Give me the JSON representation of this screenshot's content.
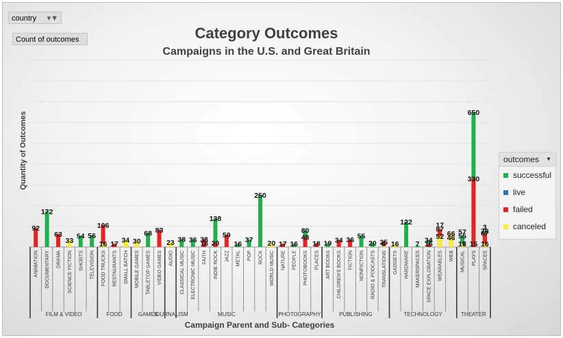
{
  "filters": {
    "country_label": "country",
    "values_label": "Count of outcomes"
  },
  "colors": {
    "successful": "#1fb24a",
    "live": "#2a74c0",
    "failed": "#e8231f",
    "canceled": "#f7ee2a"
  },
  "chart_data": {
    "type": "bar",
    "title": "Category Outcomes",
    "subtitle": "Campaigns in the U.S. and Great Britain",
    "xlabel": "Campaign Parent and Sub- Categories",
    "ylabel": "Quantity of Outcomes",
    "ylim": [
      0,
      900
    ],
    "grid": true,
    "legend_position": "right",
    "legend_title": "outcomes",
    "series_names": [
      "successful",
      "live",
      "failed",
      "canceled"
    ],
    "groups": [
      {
        "name": "FILM & VIDEO",
        "categories": [
          "ANIMATION",
          "DOCUMENTARY",
          "DRAMA",
          "SCIENCE FICTION",
          "SHORTS",
          "TELEVISION"
        ]
      },
      {
        "name": "FOOD",
        "categories": [
          "FOOD TRUCKS",
          "RESTAURANTS",
          "SMALL BATCH"
        ]
      },
      {
        "name": "GAMES",
        "categories": [
          "MOBILE GAMES",
          "TABLETOP GAMES",
          "VIDEO GAMES"
        ]
      },
      {
        "name": "JOURNALISM",
        "categories": [
          "AUDIO"
        ]
      },
      {
        "name": "MUSIC",
        "categories": [
          "CLASSICAL MUSIC",
          "ELECTRONIC MUSIC",
          "FAITH",
          "INDIE ROCK",
          "JAZZ",
          "METAL",
          "POP",
          "ROCK",
          "WORLD MUSIC"
        ]
      },
      {
        "name": "PHOTOGRAPHY",
        "categories": [
          "NATURE",
          "PEOPLE",
          "PHOTOBOOKS",
          "PLACES"
        ]
      },
      {
        "name": "PUBLISHING",
        "categories": [
          "ART BOOKS",
          "CHILDREN'S BOOKS",
          "FICTION",
          "NONFICTION",
          "RADIO & PODCASTS",
          "TRANSLATIONS"
        ]
      },
      {
        "name": "TECHNOLOGY",
        "categories": [
          "GADGETS",
          "HARDWARE",
          "MAKERSPACES",
          "SPACE EXPLORATION",
          "WEARABLES",
          "WEB"
        ]
      },
      {
        "name": "THEATER",
        "categories": [
          "MUSICAL",
          "PLAYS",
          "SPACES"
        ]
      }
    ],
    "points": [
      {
        "cat": "ANIMATION",
        "successful": 0,
        "live": 0,
        "failed": 92,
        "canceled": 0
      },
      {
        "cat": "DOCUMENTARY",
        "successful": 172,
        "live": 0,
        "failed": 0,
        "canceled": 0
      },
      {
        "cat": "DRAMA",
        "successful": 0,
        "live": 0,
        "failed": 63,
        "canceled": 0
      },
      {
        "cat": "SCIENCE FICTION",
        "successful": 0,
        "live": 0,
        "failed": 0,
        "canceled": 33
      },
      {
        "cat": "SHORTS",
        "successful": 54,
        "live": 0,
        "failed": 0,
        "canceled": 0
      },
      {
        "cat": "TELEVISION",
        "successful": 56,
        "live": 0,
        "failed": 0,
        "canceled": 0
      },
      {
        "cat": "FOOD TRUCKS",
        "successful": 0,
        "live": 0,
        "failed": 106,
        "canceled": 16
      },
      {
        "cat": "RESTAURANTS",
        "successful": 0,
        "live": 0,
        "failed": 17,
        "canceled": 0
      },
      {
        "cat": "SMALL BATCH",
        "successful": 0,
        "live": 0,
        "failed": 0,
        "canceled": 34
      },
      {
        "cat": "MOBILE GAMES",
        "successful": 0,
        "live": 0,
        "failed": 0,
        "canceled": 30
      },
      {
        "cat": "TABLETOP GAMES",
        "successful": 68,
        "live": 0,
        "failed": 0,
        "canceled": 0
      },
      {
        "cat": "VIDEO GAMES",
        "successful": 0,
        "live": 0,
        "failed": 83,
        "canceled": 0
      },
      {
        "cat": "AUDIO",
        "successful": 0,
        "live": 0,
        "failed": 0,
        "canceled": 23
      },
      {
        "cat": "CLASSICAL MUSIC",
        "successful": 38,
        "live": 0,
        "failed": 0,
        "canceled": 0
      },
      {
        "cat": "ELECTRONIC MUSIC",
        "successful": 36,
        "live": 0,
        "failed": 0,
        "canceled": 0
      },
      {
        "cat": "FAITH",
        "successful": 0,
        "live": 18,
        "failed": 38,
        "canceled": 0
      },
      {
        "cat": "INDIE ROCK",
        "successful": 138,
        "live": 0,
        "failed": 20,
        "canceled": 0
      },
      {
        "cat": "JAZZ",
        "successful": 0,
        "live": 0,
        "failed": 59,
        "canceled": 0
      },
      {
        "cat": "METAL",
        "successful": 16,
        "live": 0,
        "failed": 0,
        "canceled": 0
      },
      {
        "cat": "POP",
        "successful": 37,
        "live": 0,
        "failed": 0,
        "canceled": 0
      },
      {
        "cat": "ROCK",
        "successful": 250,
        "live": 0,
        "failed": 0,
        "canceled": 0
      },
      {
        "cat": "WORLD MUSIC",
        "successful": 0,
        "live": 0,
        "failed": 0,
        "canceled": 20
      },
      {
        "cat": "NATURE",
        "successful": 0,
        "live": 0,
        "failed": 17,
        "canceled": 0
      },
      {
        "cat": "PEOPLE",
        "successful": 16,
        "live": 0,
        "failed": 0,
        "canceled": 0
      },
      {
        "cat": "PHOTOBOOKS",
        "successful": 80,
        "live": 0,
        "failed": 48,
        "canceled": 0
      },
      {
        "cat": "PLACES",
        "successful": 0,
        "live": 0,
        "failed": 18,
        "canceled": 0
      },
      {
        "cat": "ART BOOKS",
        "successful": 19,
        "live": 0,
        "failed": 0,
        "canceled": 0
      },
      {
        "cat": "CHILDREN'S BOOKS",
        "successful": 0,
        "live": 0,
        "failed": 34,
        "canceled": 0
      },
      {
        "cat": "FICTION",
        "successful": 0,
        "live": 0,
        "failed": 36,
        "canceled": 0
      },
      {
        "cat": "NONFICTION",
        "successful": 55,
        "live": 0,
        "failed": 0,
        "canceled": 0
      },
      {
        "cat": "RADIO & PODCASTS",
        "successful": 20,
        "live": 0,
        "failed": 0,
        "canceled": 0
      },
      {
        "cat": "TRANSLATIONS",
        "successful": 0,
        "live": 0,
        "failed": 25,
        "canceled": 6
      },
      {
        "cat": "GADGETS",
        "successful": 0,
        "live": 0,
        "failed": 0,
        "canceled": 16
      },
      {
        "cat": "HARDWARE",
        "successful": 122,
        "live": 0,
        "failed": 0,
        "canceled": 0
      },
      {
        "cat": "MAKERSPACES",
        "successful": 7,
        "live": 0,
        "failed": 0,
        "canceled": 0
      },
      {
        "cat": "SPACE EXPLORATION",
        "successful": 34,
        "live": 0,
        "failed": 16,
        "canceled": 0
      },
      {
        "cat": "WEARABLES",
        "successful": 0,
        "live": 0,
        "failed": 87,
        "canceled": 52
      },
      {
        "cat": "WEB",
        "successful": 0,
        "live": 0,
        "failed": 46,
        "canceled": 66
      },
      {
        "cat": "MUSICAL",
        "successful": 55,
        "live": 0,
        "failed": 17,
        "canceled": 16
      },
      {
        "cat": "PLAYS",
        "successful": 650,
        "live": 15,
        "failed": 330,
        "canceled": 0
      },
      {
        "cat": "SPACES",
        "successful": 78,
        "live": 0,
        "failed": 67,
        "canceled": 16
      }
    ],
    "annotations": [
      {
        "cat": "WEARABLES",
        "label": "17"
      },
      {
        "cat": "MUSICAL",
        "label": "57"
      },
      {
        "cat": "SPACES",
        "label": "3"
      }
    ]
  }
}
